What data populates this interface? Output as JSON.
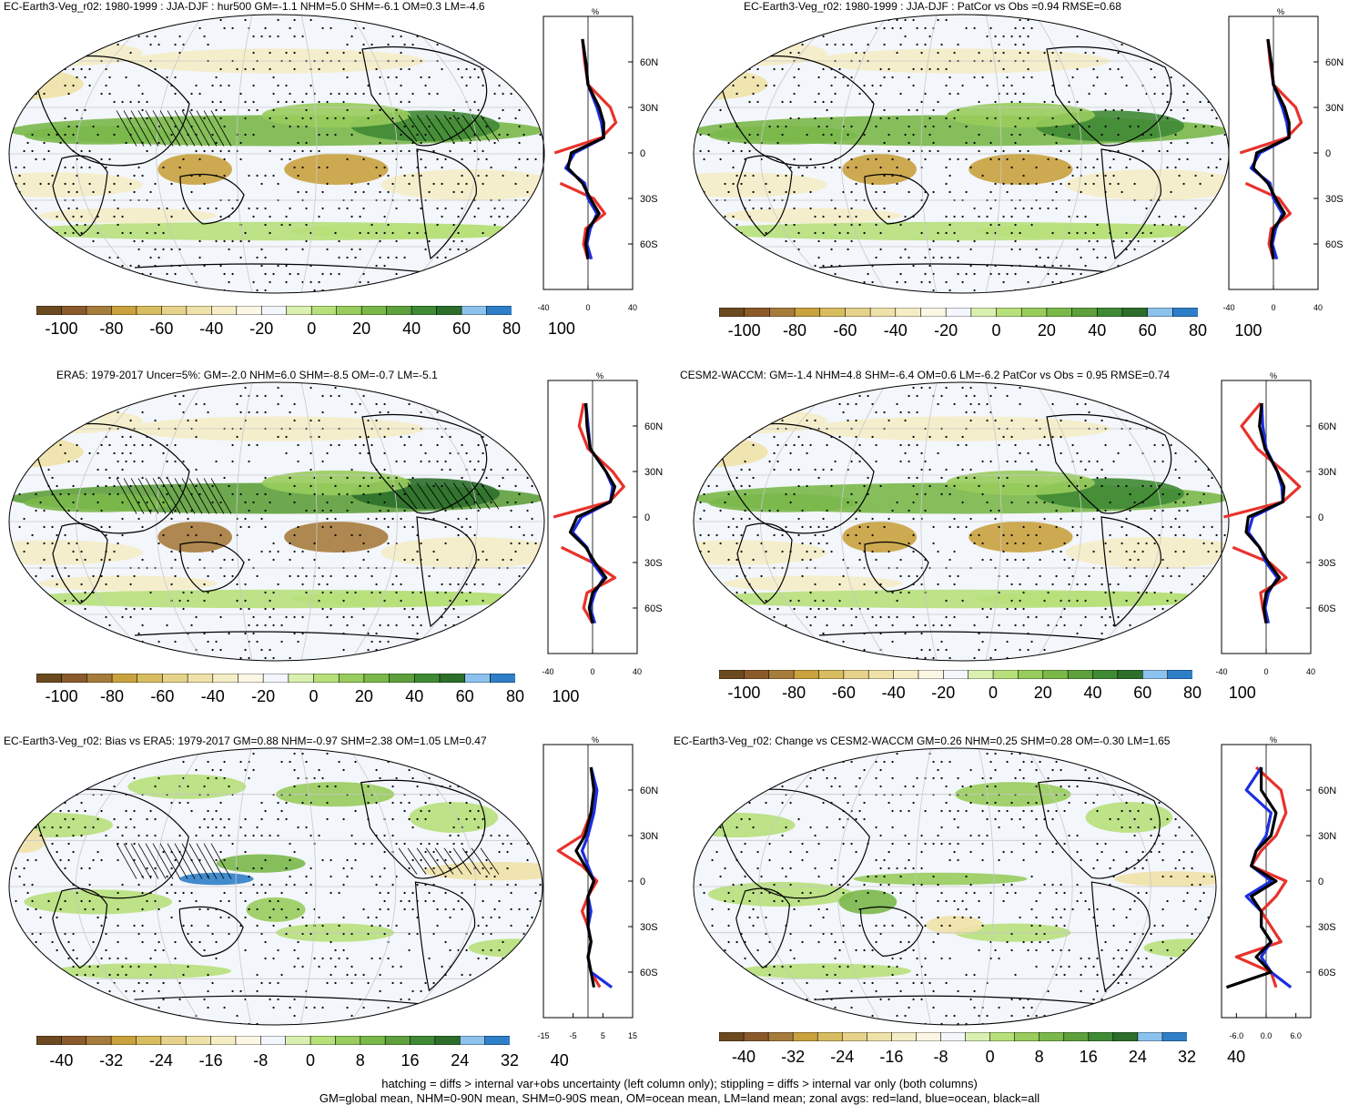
{
  "colors": {
    "scale": [
      "#6b4a1f",
      "#8b5a2b",
      "#a67c3d",
      "#c9a23e",
      "#d8bd60",
      "#e6d28a",
      "#efe2a8",
      "#f5edc6",
      "#fbf7e4",
      "#f3f6fb",
      "#d9f0b0",
      "#b7e07a",
      "#98cc5c",
      "#7ab84a",
      "#5ea03c",
      "#3f8a34",
      "#2c6e2a",
      "#8cc3ee",
      "#2f7fc8"
    ],
    "land": "#e8322c",
    "ocean": "#1c2ee0",
    "all": "#000000",
    "map_bg": "#f3f6fb"
  },
  "panels": [
    {
      "title": "EC-Earth3-Veg_r02: 1980-1999 : JJA-DJF : hur500 GM=-1.1 NHM=5.0 SHM=-6.1 OM=0.3 LM=-4.6",
      "cbar_labels": [
        "-100",
        "-80",
        "-60",
        "-40",
        "-20",
        "0",
        "20",
        "40",
        "60",
        "80",
        "100"
      ],
      "zonal_unit": "%",
      "lat_labels": [
        "60N",
        "30N",
        "0",
        "30S",
        "60S"
      ],
      "x_labels": [
        "-40",
        "0",
        "40"
      ]
    },
    {
      "title": "EC-Earth3-Veg_r02: 1980-1999 : JJA-DJF : PatCor vs Obs =0.94 RMSE=0.68",
      "cbar_labels": [
        "-100",
        "-80",
        "-60",
        "-40",
        "-20",
        "0",
        "20",
        "40",
        "60",
        "80",
        "100"
      ],
      "zonal_unit": "%",
      "lat_labels": [
        "60N",
        "30N",
        "0",
        "30S",
        "60S"
      ],
      "x_labels": [
        "-40",
        "0",
        "40"
      ]
    },
    {
      "title": "ERA5: 1979-2017 Uncer=5%: GM=-2.0 NHM=6.0 SHM=-8.5 OM=-0.7 LM=-5.1",
      "cbar_labels": [
        "-100",
        "-80",
        "-60",
        "-40",
        "-20",
        "0",
        "20",
        "40",
        "60",
        "80",
        "100"
      ],
      "zonal_unit": "%",
      "lat_labels": [
        "60N",
        "30N",
        "0",
        "30S",
        "60S"
      ],
      "x_labels": [
        "-40",
        "0",
        "40"
      ]
    },
    {
      "title": "CESM2-WACCM: GM=-1.4 NHM=4.8 SHM=-6.4 OM=0.6 LM=-6.2 PatCor vs Obs = 0.95 RMSE=0.74",
      "cbar_labels": [
        "-100",
        "-80",
        "-60",
        "-40",
        "-20",
        "0",
        "20",
        "40",
        "60",
        "80",
        "100"
      ],
      "zonal_unit": "%",
      "lat_labels": [
        "60N",
        "30N",
        "0",
        "30S",
        "60S"
      ],
      "x_labels": [
        "-40",
        "0",
        "40"
      ]
    },
    {
      "title": "EC-Earth3-Veg_r02: Bias vs ERA5: 1979-2017 GM=0.88 NHM=-0.97 SHM=2.38 OM=1.05 LM=0.47",
      "cbar_labels": [
        "-40",
        "-32",
        "-24",
        "-16",
        "-8",
        "0",
        "8",
        "16",
        "24",
        "32",
        "40"
      ],
      "zonal_unit": "%",
      "lat_labels": [
        "60N",
        "30N",
        "0",
        "30S",
        "60S"
      ],
      "x_labels": [
        "-15",
        "-5",
        "5",
        "15"
      ]
    },
    {
      "title": "EC-Earth3-Veg_r02: Change vs CESM2-WACCM GM=0.26 NHM=0.25 SHM=0.28 OM=-0.30 LM=1.65",
      "cbar_labels": [
        "-40",
        "-32",
        "-24",
        "-16",
        "-8",
        "0",
        "8",
        "16",
        "24",
        "32",
        "40"
      ],
      "zonal_unit": "%",
      "lat_labels": [
        "60N",
        "30N",
        "0",
        "30S",
        "60S"
      ],
      "x_labels": [
        "-6.0",
        "0.0",
        "6.0"
      ]
    }
  ],
  "footer": {
    "line1": "hatching = diffs > internal var+obs uncertainty (left column only); stippling = diffs > internal var only (both columns)",
    "line2": "GM=global mean, NHM=0-90N mean, SHM=0-90S mean, OM=ocean mean, LM=land mean; zonal avgs: red=land, blue=ocean, black=all"
  },
  "chart_data": [
    {
      "type": "line",
      "title": "EC-Earth3-Veg_r02: 1980-1999 : JJA-DJF : hur500 GM=-1.1 NHM=5.0 SHM=-6.1 OM=0.3 LM=-4.6",
      "xlim": [
        -40,
        40
      ],
      "ylim": [
        -90,
        90
      ],
      "y": [
        75,
        60,
        45,
        30,
        20,
        10,
        0,
        -10,
        -20,
        -30,
        -40,
        -50,
        -60,
        -70
      ],
      "series": [
        {
          "name": "land",
          "values": [
            -5,
            -3,
            0,
            20,
            25,
            12,
            -30,
            null,
            -25,
            5,
            15,
            -2,
            -4,
            0
          ]
        },
        {
          "name": "ocean",
          "values": [
            -5,
            -2,
            0,
            8,
            12,
            14,
            -12,
            -20,
            -3,
            0,
            8,
            2,
            -1,
            3
          ]
        },
        {
          "name": "all",
          "values": [
            -5,
            -2,
            0,
            10,
            14,
            14,
            -15,
            -18,
            -5,
            2,
            10,
            0,
            -2,
            0
          ]
        }
      ]
    },
    {
      "type": "line",
      "title": "EC-Earth3-Veg_r02: 1980-1999 : JJA-DJF : PatCor vs Obs =0.94 RMSE=0.68",
      "xlim": [
        -40,
        40
      ],
      "ylim": [
        -90,
        90
      ],
      "y": [
        75,
        60,
        45,
        30,
        20,
        10,
        0,
        -10,
        -20,
        -30,
        -40,
        -50,
        -60,
        -70
      ],
      "series": [
        {
          "name": "land",
          "values": [
            -5,
            -3,
            0,
            20,
            25,
            12,
            -30,
            null,
            -25,
            5,
            15,
            -2,
            -4,
            0
          ]
        },
        {
          "name": "ocean",
          "values": [
            -5,
            -2,
            0,
            8,
            12,
            14,
            -12,
            -20,
            -3,
            0,
            8,
            2,
            -1,
            3
          ]
        },
        {
          "name": "all",
          "values": [
            -5,
            -2,
            0,
            10,
            14,
            14,
            -15,
            -18,
            -5,
            2,
            10,
            0,
            -2,
            0
          ]
        }
      ]
    },
    {
      "type": "line",
      "title": "ERA5: 1979-2017 Uncer=5%: GM=-2.0 NHM=6.0 SHM=-8.5 OM=-0.7 LM=-5.1",
      "xlim": [
        -40,
        40
      ],
      "ylim": [
        -90,
        90
      ],
      "y": [
        75,
        60,
        45,
        30,
        20,
        10,
        0,
        -10,
        -20,
        -30,
        -40,
        -50,
        -60,
        -70
      ],
      "series": [
        {
          "name": "land",
          "values": [
            -8,
            -12,
            -4,
            18,
            28,
            15,
            -35,
            null,
            -28,
            0,
            20,
            -5,
            -8,
            0
          ]
        },
        {
          "name": "ocean",
          "values": [
            -6,
            -4,
            -2,
            12,
            18,
            16,
            -10,
            -18,
            -5,
            0,
            10,
            2,
            -2,
            2
          ]
        },
        {
          "name": "all",
          "values": [
            -6,
            -5,
            -2,
            12,
            20,
            16,
            -14,
            -20,
            -6,
            2,
            12,
            0,
            -3,
            0
          ]
        }
      ]
    },
    {
      "type": "line",
      "title": "CESM2-WACCM: GM=-1.4 NHM=4.8 SHM=-6.4 OM=0.6 LM=-6.2 PatCor vs Obs = 0.95 RMSE=0.74",
      "xlim": [
        -40,
        40
      ],
      "ylim": [
        -90,
        90
      ],
      "y": [
        75,
        60,
        45,
        30,
        20,
        10,
        0,
        -10,
        -20,
        -30,
        -40,
        -50,
        -60,
        -70
      ],
      "series": [
        {
          "name": "land",
          "values": [
            -5,
            -22,
            -8,
            16,
            30,
            15,
            -38,
            null,
            -30,
            3,
            18,
            -5,
            -3,
            0
          ]
        },
        {
          "name": "ocean",
          "values": [
            -4,
            -3,
            0,
            10,
            14,
            15,
            -12,
            -16,
            -6,
            0,
            10,
            2,
            -1,
            2
          ]
        },
        {
          "name": "all",
          "values": [
            -4,
            -6,
            -1,
            10,
            16,
            15,
            -16,
            -18,
            -6,
            2,
            12,
            0,
            -2,
            0
          ]
        }
      ]
    },
    {
      "type": "line",
      "title": "EC-Earth3-Veg_r02: Bias vs ERA5: 1979-2017 GM=0.88 NHM=-0.97 SHM=2.38 OM=1.05 LM=0.47",
      "xlim": [
        -15,
        15
      ],
      "ylim": [
        -90,
        90
      ],
      "y": [
        75,
        60,
        45,
        30,
        20,
        10,
        0,
        -10,
        -20,
        -30,
        -40,
        -50,
        -60,
        -70
      ],
      "series": [
        {
          "name": "land",
          "values": [
            1,
            2,
            1,
            -2,
            -10,
            -2,
            3,
            0,
            -2,
            0,
            1,
            0,
            1,
            4
          ]
        },
        {
          "name": "ocean",
          "values": [
            1,
            3,
            2,
            0,
            -2,
            0,
            2,
            0,
            1,
            0,
            1,
            0,
            1,
            8
          ]
        },
        {
          "name": "all",
          "values": [
            1,
            2,
            1,
            -1,
            -4,
            -1,
            2,
            0,
            0,
            0,
            1,
            0,
            1,
            2
          ]
        }
      ]
    },
    {
      "type": "line",
      "title": "EC-Earth3-Veg_r02: Change vs CESM2-WACCM GM=0.26 NHM=0.25 SHM=0.28 OM=-0.30 LM=1.65",
      "xlim": [
        -9,
        9
      ],
      "ylim": [
        -90,
        90
      ],
      "y": [
        75,
        60,
        45,
        30,
        20,
        10,
        0,
        -10,
        -20,
        -30,
        -40,
        -50,
        -60,
        -70
      ],
      "series": [
        {
          "name": "land",
          "values": [
            -2,
            3,
            4,
            2,
            -1,
            -3,
            4,
            2,
            -1,
            1,
            3,
            -6,
            1,
            2
          ]
        },
        {
          "name": "ocean",
          "values": [
            -1,
            -4,
            1,
            0,
            -2,
            -3,
            1,
            -4,
            -1,
            -1,
            1,
            -1,
            1,
            5
          ]
        },
        {
          "name": "all",
          "values": [
            -1,
            -1,
            2,
            1,
            -2,
            -3,
            2,
            -3,
            -1,
            -1,
            1,
            -2,
            1,
            -8
          ]
        }
      ]
    }
  ]
}
